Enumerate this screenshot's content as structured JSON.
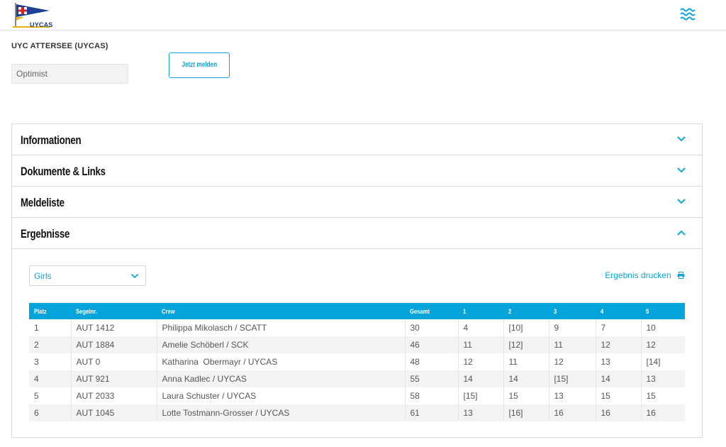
{
  "header": {
    "logo_text": "UYCAS",
    "menu_icon": "wave-menu-icon",
    "accent_color": "#0aa6d8"
  },
  "event": {
    "club_name": "UYC ATTERSEE (UYCAS)",
    "class_name": "Optimist",
    "register_label": "Jetzt melden"
  },
  "accordion": {
    "items": [
      {
        "label": "Informationen",
        "state": "collapsed"
      },
      {
        "label": "Dokumente & Links",
        "state": "collapsed"
      },
      {
        "label": "Meldeliste",
        "state": "collapsed"
      },
      {
        "label": "Ergebnisse",
        "state": "expanded"
      }
    ]
  },
  "results": {
    "filter_value": "Girls",
    "print_label": "Ergebnis drucken",
    "header_color": "#04a3d9",
    "columns": [
      "Platz",
      "Segelnr.",
      "Crew",
      "Gesamt",
      "1",
      "2",
      "3",
      "4",
      "5"
    ],
    "rows": [
      [
        "1",
        "AUT 1412",
        "Philippa Mikolasch / SCATT",
        "30",
        "4",
        "[10]",
        "9",
        "7",
        "10"
      ],
      [
        "2",
        "AUT 1884",
        "Amelie Schöberl / SCK",
        "46",
        "11",
        "[12]",
        "11",
        "12",
        "12"
      ],
      [
        "3",
        "AUT 0",
        "Katharina  Obermayr / UYCAS",
        "48",
        "12",
        "11",
        "12",
        "13",
        "[14]"
      ],
      [
        "4",
        "AUT 921",
        "Anna Kadlec / UYCAS",
        "55",
        "14",
        "14",
        "[15]",
        "14",
        "13"
      ],
      [
        "5",
        "AUT 2033",
        "Laura Schuster / UYCAS",
        "58",
        "[15]",
        "15",
        "13",
        "15",
        "15"
      ],
      [
        "6",
        "AUT 1045",
        "Lotte Tostmann-Grosser / UYCAS",
        "61",
        "13",
        "[16]",
        "16",
        "16",
        "16"
      ]
    ]
  }
}
